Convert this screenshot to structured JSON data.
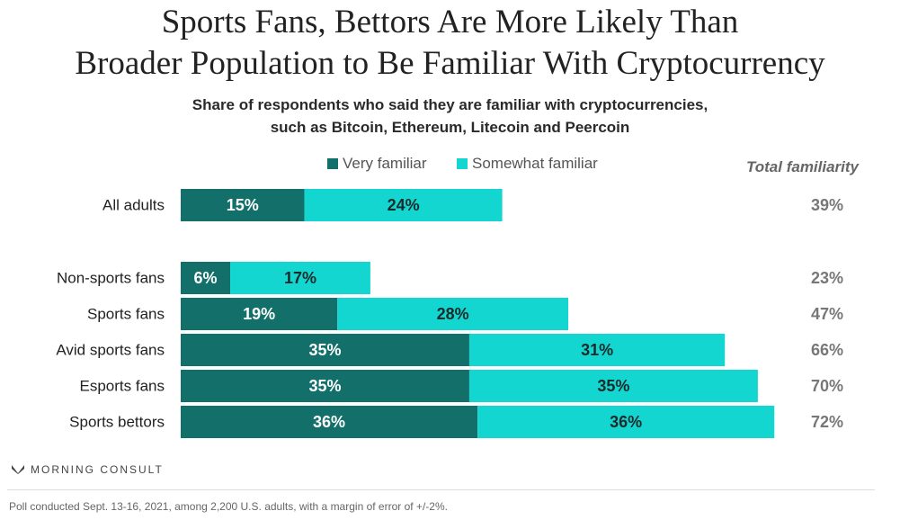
{
  "title_line1": "Sports Fans, Bettors Are More Likely Than",
  "title_line2": "Broader Population to Be Familiar With Cryptocurrency",
  "subtitle_line1": "Share of respondents who said they are familiar with cryptocurrencies,",
  "subtitle_line2": "such as Bitcoin, Ethereum, Litecoin and Peercoin",
  "total_header": "Total familiarity",
  "brand": "MORNING CONSULT",
  "footnote": "Poll conducted Sept. 13-16, 2021, among 2,200 U.S. adults, with a margin of error of +/-2%.",
  "colors": {
    "very": "#136f69",
    "somewhat": "#14d6d0",
    "text_dark": "#222222",
    "total_text": "#777777"
  },
  "chart_data": {
    "type": "bar",
    "orientation": "horizontal",
    "stacked": true,
    "categories": [
      "All adults",
      "Non-sports fans",
      "Sports fans",
      "Avid sports fans",
      "Esports fans",
      "Sports bettors"
    ],
    "series": [
      {
        "name": "Very familiar",
        "values": [
          15,
          6,
          19,
          35,
          35,
          36
        ],
        "labels": [
          "15%",
          "6%",
          "19%",
          "35%",
          "35%",
          "36%"
        ]
      },
      {
        "name": "Somewhat familiar",
        "values": [
          24,
          17,
          28,
          31,
          35,
          36
        ],
        "labels": [
          "24%",
          "17%",
          "28%",
          "31%",
          "35%",
          "36%"
        ]
      }
    ],
    "totals": [
      39,
      23,
      47,
      66,
      70,
      72
    ],
    "total_labels": [
      "39%",
      "23%",
      "47%",
      "66%",
      "70%",
      "72%"
    ],
    "legend_placement": "top",
    "grid": false
  }
}
